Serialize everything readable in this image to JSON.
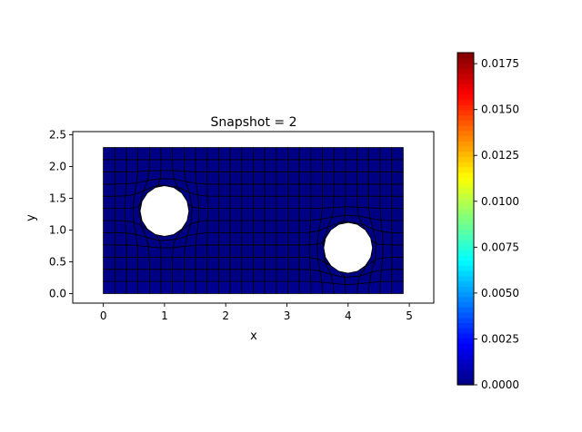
{
  "chart_data": {
    "type": "heatmap",
    "title": "Snapshot = 2",
    "xlabel": "x",
    "ylabel": "y",
    "xlim": [
      -0.5,
      5.4
    ],
    "ylim": [
      2.55,
      -0.15
    ],
    "y_inverted": true,
    "xticks": [
      0,
      1,
      2,
      3,
      4,
      5
    ],
    "xtick_labels": [
      "0",
      "1",
      "2",
      "3",
      "4",
      "5"
    ],
    "yticks": [
      0.0,
      0.5,
      1.0,
      1.5,
      2.0,
      2.5
    ],
    "ytick_labels": [
      "0.0",
      "0.5",
      "1.0",
      "1.5",
      "2.0",
      "2.5"
    ],
    "domain": {
      "x": [
        0,
        4.9
      ],
      "y": [
        0,
        2.3
      ]
    },
    "holes": [
      {
        "cx": 1.0,
        "cy": 1.3,
        "r": 0.4
      },
      {
        "cx": 4.0,
        "cy": 0.72,
        "r": 0.4
      }
    ],
    "field": {
      "base_value": 0.0001,
      "top_row_value": 0.0003
    },
    "colorbar": {
      "colormap": "jet",
      "range": [
        0.0,
        0.0181
      ],
      "ticks": [
        0.0,
        0.0025,
        0.005,
        0.0075,
        0.01,
        0.0125,
        0.015,
        0.0175
      ],
      "tick_labels": [
        "0.0000",
        "0.0025",
        "0.0050",
        "0.0075",
        "0.0100",
        "0.0125",
        "0.0150",
        "0.0175"
      ]
    },
    "grid": false,
    "legend": "none"
  }
}
